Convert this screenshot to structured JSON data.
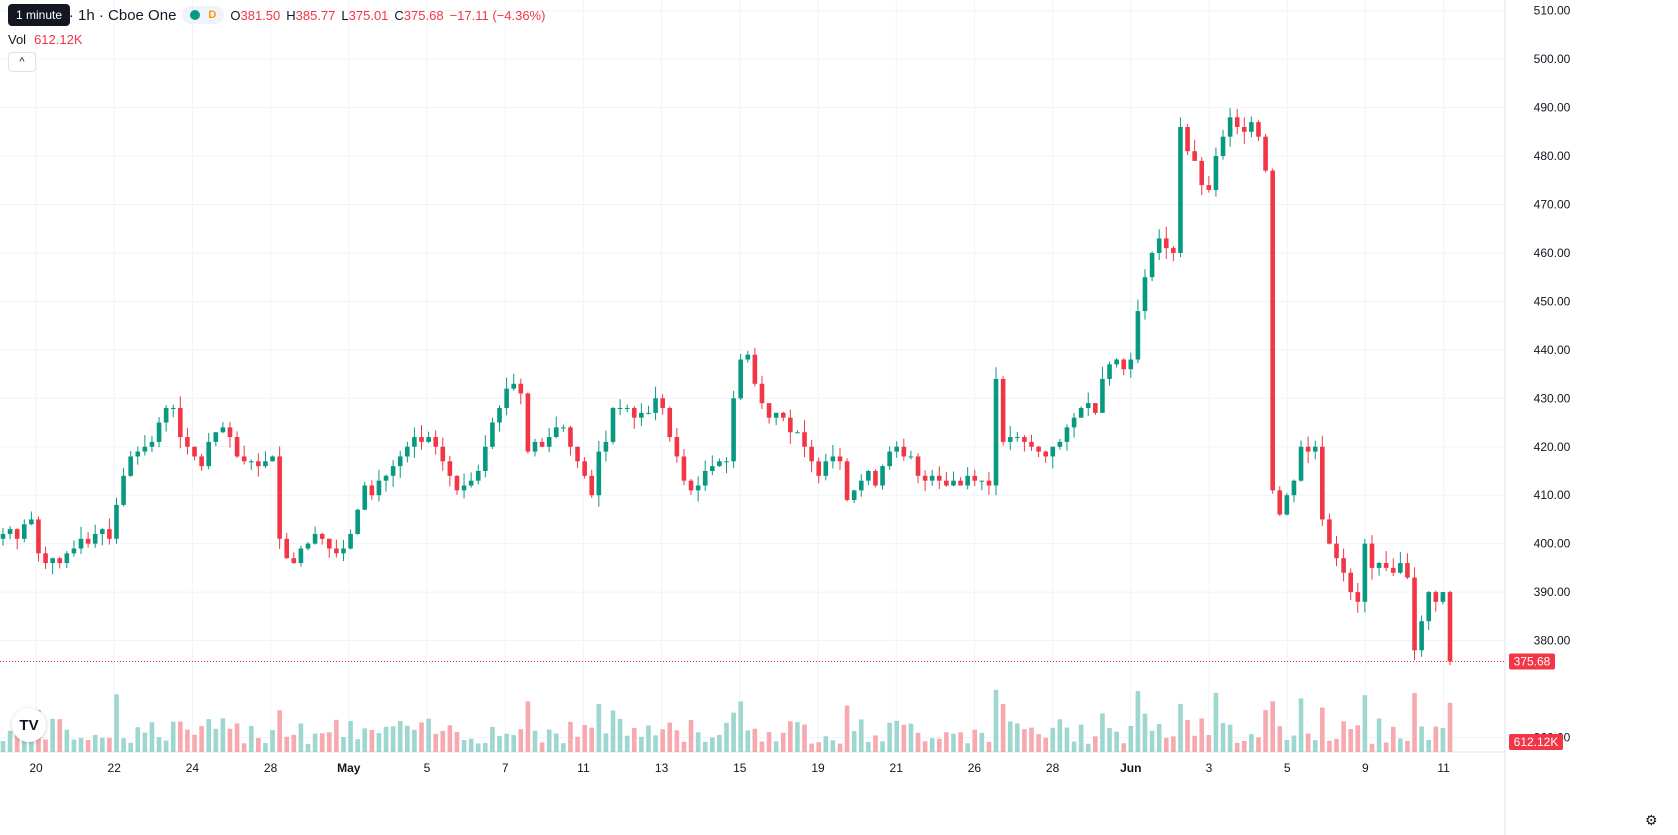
{
  "legend": {
    "symbol_title": "com Inc. · 1h · Cboe One",
    "badge_d": "D",
    "open_label": "O",
    "open": "381.50",
    "high_label": "H",
    "high": "385.77",
    "low_label": "L",
    "low": "375.01",
    "close_label": "C",
    "close": "375.68",
    "change": "−17.11 (−4.36%)"
  },
  "tooltip": "1 minute",
  "volume": {
    "label": "Vol",
    "value": "612.12K"
  },
  "colors": {
    "up": "#089981",
    "down": "#f23645",
    "vol_up": "#9ed7cf",
    "vol_down": "#f7a9b0",
    "grid": "#f0f3fa"
  },
  "icons": {
    "collapse": "chevron-up-icon",
    "logo": "tradingview-logo-icon",
    "settings": "gear-icon"
  },
  "collapse_glyph": "^",
  "logo_text": "TV",
  "gear_glyph": "⚙",
  "chart_data": {
    "type": "candlestick",
    "price_axis_ticks": [
      "360.00",
      "380.00",
      "390.00",
      "400.00",
      "410.00",
      "420.00",
      "430.00",
      "440.00",
      "450.00",
      "460.00",
      "470.00",
      "480.00",
      "490.00",
      "500.00",
      "510.00"
    ],
    "price_ticks_values": [
      360,
      380,
      390,
      400,
      410,
      420,
      430,
      440,
      450,
      460,
      470,
      480,
      490,
      500,
      510
    ],
    "time_axis_labels": [
      "20",
      "22",
      "24",
      "28",
      "May",
      "5",
      "7",
      "11",
      "13",
      "15",
      "19",
      "21",
      "26",
      "28",
      "Jun",
      "3",
      "5",
      "9",
      "11"
    ],
    "last_price": "375.68",
    "last_volume": "612.12K",
    "ylim": [
      357,
      512
    ],
    "closes": [
      402,
      403,
      401,
      404,
      405,
      398,
      396,
      397,
      396,
      398,
      399,
      401,
      400,
      402,
      403,
      401,
      408,
      414,
      418,
      419,
      420,
      421,
      425,
      428,
      428,
      422,
      420,
      418,
      416,
      421,
      423,
      424,
      422,
      418,
      417,
      417,
      416,
      417,
      418,
      401,
      397,
      396,
      399,
      400,
      402,
      401,
      399,
      398,
      399,
      402,
      407,
      412,
      410,
      413,
      414,
      416,
      418,
      420,
      422,
      421,
      422,
      420,
      417,
      414,
      411,
      412,
      413,
      415,
      420,
      425,
      428,
      432,
      433,
      431,
      419,
      421,
      420,
      422,
      424,
      424,
      420,
      417,
      414,
      410,
      419,
      421,
      428,
      428,
      428,
      426,
      427,
      427,
      430,
      428,
      422,
      418,
      413,
      411,
      412,
      415,
      416,
      417,
      417,
      430,
      438,
      439,
      433,
      429,
      426,
      427,
      426,
      423,
      423,
      420,
      417,
      414,
      417,
      418,
      417,
      409,
      411,
      413,
      415,
      412,
      416,
      419,
      420,
      418,
      418,
      414,
      413,
      414,
      413,
      412,
      413,
      412,
      414,
      413,
      413,
      412,
      434,
      421,
      422,
      422,
      421,
      420,
      419,
      418,
      420,
      421,
      424,
      426,
      428,
      429,
      427,
      434,
      437,
      438,
      436,
      438,
      448,
      455,
      460,
      463,
      461,
      460,
      486,
      481,
      479,
      474,
      473,
      480,
      484,
      488,
      486,
      485,
      487,
      484,
      477,
      411,
      406,
      410,
      413,
      420,
      419,
      420,
      405,
      400,
      397,
      394,
      390,
      388,
      400,
      395,
      396,
      395,
      394,
      396,
      393,
      378,
      384,
      390,
      388,
      390,
      375.68
    ]
  }
}
